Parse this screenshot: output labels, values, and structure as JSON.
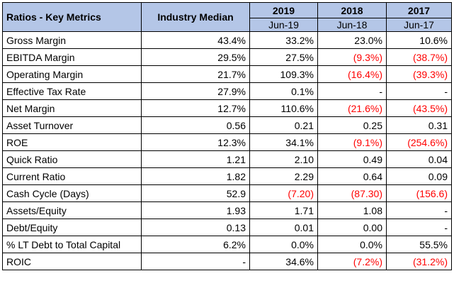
{
  "header": {
    "metric_col": "Ratios - Key Metrics",
    "median_col": "Industry Median",
    "years": [
      "2019",
      "2018",
      "2017"
    ],
    "periods": [
      "Jun-19",
      "Jun-18",
      "Jun-17"
    ]
  },
  "rows": [
    {
      "label": "Gross Margin",
      "median": "43.4%",
      "y2019": "33.2%",
      "y2018": "23.0%",
      "y2017": "10.6%",
      "neg": []
    },
    {
      "label": "EBITDA Margin",
      "median": "29.5%",
      "y2019": "27.5%",
      "y2018": "(9.3%)",
      "y2017": "(38.7%)",
      "neg": [
        "y2018",
        "y2017"
      ]
    },
    {
      "label": "Operating Margin",
      "median": "21.7%",
      "y2019": "109.3%",
      "y2018": "(16.4%)",
      "y2017": "(39.3%)",
      "neg": [
        "y2018",
        "y2017"
      ]
    },
    {
      "label": "Effective Tax Rate",
      "median": "27.9%",
      "y2019": "0.1%",
      "y2018": "-",
      "y2017": "-",
      "neg": []
    },
    {
      "label": "Net Margin",
      "median": "12.7%",
      "y2019": "110.6%",
      "y2018": "(21.6%)",
      "y2017": "(43.5%)",
      "neg": [
        "y2018",
        "y2017"
      ]
    },
    {
      "label": "Asset Turnover",
      "median": "0.56",
      "y2019": "0.21",
      "y2018": "0.25",
      "y2017": "0.31",
      "neg": []
    },
    {
      "label": "ROE",
      "median": "12.3%",
      "y2019": "34.1%",
      "y2018": "(9.1%)",
      "y2017": "(254.6%)",
      "neg": [
        "y2018",
        "y2017"
      ]
    },
    {
      "label": "Quick Ratio",
      "median": "1.21",
      "y2019": "2.10",
      "y2018": "0.49",
      "y2017": "0.04",
      "neg": []
    },
    {
      "label": "Current Ratio",
      "median": "1.82",
      "y2019": "2.29",
      "y2018": "0.64",
      "y2017": "0.09",
      "neg": []
    },
    {
      "label": "Cash Cycle (Days)",
      "median": "52.9",
      "y2019": "(7.20)",
      "y2018": "(87.30)",
      "y2017": "(156.6)",
      "neg": [
        "y2019",
        "y2018",
        "y2017"
      ]
    },
    {
      "label": "Assets/Equity",
      "median": "1.93",
      "y2019": "1.71",
      "y2018": "1.08",
      "y2017": "-",
      "neg": []
    },
    {
      "label": "Debt/Equity",
      "median": "0.13",
      "y2019": "0.01",
      "y2018": "0.00",
      "y2017": "-",
      "neg": []
    },
    {
      "label": "% LT Debt to Total Capital",
      "median": "6.2%",
      "y2019": "0.0%",
      "y2018": "0.0%",
      "y2017": "55.5%",
      "neg": []
    },
    {
      "label": "ROIC",
      "median": "-",
      "y2019": "34.6%",
      "y2018": "(7.2%)",
      "y2017": "(31.2%)",
      "neg": [
        "y2018",
        "y2017"
      ]
    }
  ],
  "colors": {
    "header_bg": "#b4c6e7",
    "negative": "#ff0000",
    "border": "#000000"
  }
}
